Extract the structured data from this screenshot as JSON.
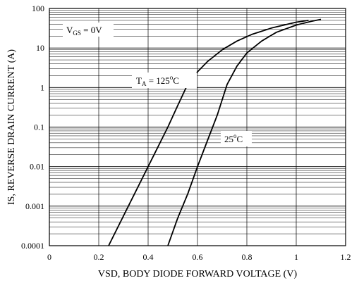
{
  "chart_data": {
    "type": "line",
    "title": "",
    "xlabel": "VSD, BODY DIODE FORWARD VOLTAGE (V)",
    "ylabel": "IS, REVERSE DRAIN CURRENT (A)",
    "xlim": [
      0,
      1.2
    ],
    "ylim": [
      0.0001,
      100
    ],
    "yscale": "log",
    "grid": true,
    "x_tick_labels": [
      "0",
      "0.2",
      "0.4",
      "0.6",
      "0.8",
      "1",
      "1.2"
    ],
    "y_tick_labels": [
      "0.0001",
      "0.001",
      "0.01",
      "0.1",
      "1",
      "10",
      "100"
    ],
    "annotations": {
      "vgs": {
        "main": "V",
        "sub": "GS",
        "rest": " = 0V"
      },
      "ta125": {
        "main": "T",
        "sub": "A",
        "mid": " = 125",
        "sup": "o",
        "rest": "C"
      },
      "t25": {
        "main": "25",
        "sup": "o",
        "rest": "C"
      }
    },
    "series": [
      {
        "label": "TA = 125°C",
        "x": [
          0.24,
          0.32,
          0.4,
          0.48,
          0.52,
          0.56,
          0.6,
          0.64,
          0.7,
          0.76,
          0.82,
          0.9,
          1.0,
          1.05
        ],
        "y": [
          0.0001,
          0.001,
          0.01,
          0.1,
          0.35,
          1.2,
          2.5,
          4.5,
          9,
          15,
          22,
          32,
          45,
          50
        ]
      },
      {
        "label": "25°C",
        "x": [
          0.48,
          0.52,
          0.56,
          0.6,
          0.64,
          0.68,
          0.72,
          0.76,
          0.8,
          0.86,
          0.92,
          1.0,
          1.06,
          1.1
        ],
        "y": [
          0.0001,
          0.0005,
          0.002,
          0.01,
          0.045,
          0.2,
          1.2,
          3.5,
          7.5,
          15,
          25,
          38,
          47,
          53
        ]
      }
    ]
  }
}
